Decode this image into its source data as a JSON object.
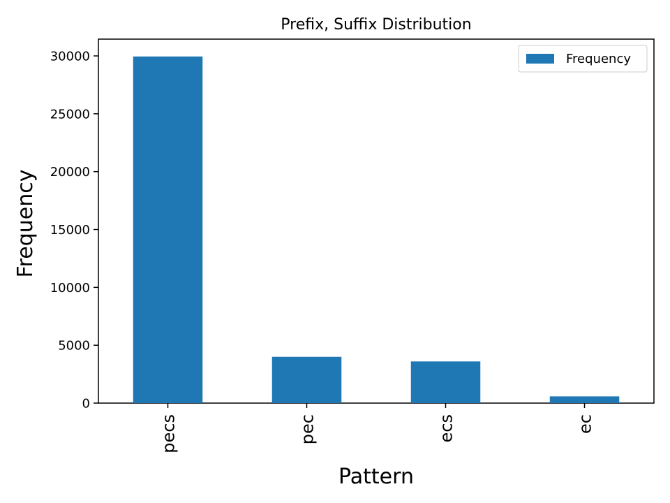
{
  "chart_data": {
    "type": "bar",
    "title": "Prefix, Suffix Distribution",
    "xlabel": "Pattern",
    "ylabel": "Frequency",
    "categories": [
      "pecs",
      "pec",
      "ecs",
      "ec"
    ],
    "series": [
      {
        "name": "Frequency",
        "color": "#1f77b4",
        "values": [
          29950,
          4000,
          3600,
          580
        ]
      }
    ],
    "ylim": [
      0,
      31450
    ],
    "yticks": [
      0,
      5000,
      10000,
      15000,
      20000,
      25000,
      30000
    ],
    "grid": false,
    "legend": "top-right"
  }
}
